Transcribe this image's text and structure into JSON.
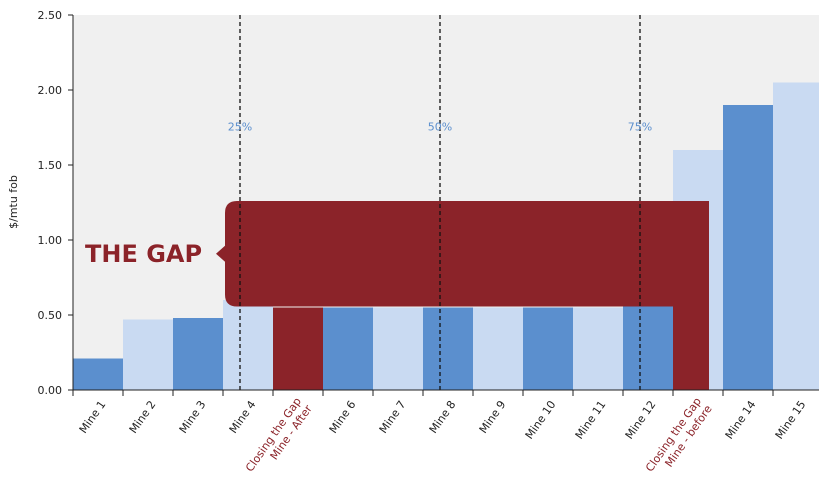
{
  "chart_data": {
    "type": "bar",
    "ylabel": "$/mtu fob",
    "ylim": [
      0,
      2.5
    ],
    "yticks": [
      "0.00",
      "0.50",
      "1.00",
      "1.50",
      "2.00",
      "2.50"
    ],
    "categories": [
      "Mine 1",
      "Mine 2",
      "Mine 3",
      "Mine 4",
      "Closing the Gap Mine - After",
      "Mine 6",
      "Mine 7",
      "Mine 8",
      "Mine 9",
      "Mine 10",
      "Mine 11",
      "Mine 12",
      "Closing the Gap Mine - before",
      "Mine 14",
      "Mine 15"
    ],
    "category_lines": [
      [
        "Mine 1"
      ],
      [
        "Mine 2"
      ],
      [
        "Mine 3"
      ],
      [
        "Mine 4"
      ],
      [
        "Closing the Gap",
        "Mine - After"
      ],
      [
        "Mine 6"
      ],
      [
        "Mine 7"
      ],
      [
        "Mine 8"
      ],
      [
        "Mine 9"
      ],
      [
        "Mine 10"
      ],
      [
        "Mine 11"
      ],
      [
        "Mine 12"
      ],
      [
        "Closing the Gap",
        "Mine - before"
      ],
      [
        "Mine 14"
      ],
      [
        "Mine 15"
      ]
    ],
    "values": [
      0.21,
      0.47,
      0.48,
      0.6,
      0.55,
      0.55,
      0.55,
      0.55,
      0.55,
      0.55,
      0.55,
      1.26,
      1.6,
      1.9,
      2.05
    ],
    "bar_colors": [
      "#5b8fce",
      "#c9daf2",
      "#5b8fce",
      "#c9daf2",
      "#8b2329",
      "#5b8fce",
      "#c9daf2",
      "#5b8fce",
      "#c9daf2",
      "#5b8fce",
      "#c9daf2",
      "#5b8fce",
      "#c9daf2",
      "#5b8fce",
      "#c9daf2"
    ],
    "gap_bar": {
      "category": "Closing the Gap Mine - before",
      "value": 1.26,
      "color": "#8b2329"
    },
    "percentile_lines": [
      {
        "label": "25%",
        "after_category": "Mine 4"
      },
      {
        "label": "50%",
        "after_category": "Mine 8"
      },
      {
        "label": "75%",
        "after_category": "Mine 12"
      }
    ],
    "gap_band": {
      "label": "THE GAP",
      "from": 0.55,
      "to": 1.26,
      "color": "#8b2329"
    },
    "grid": false
  },
  "colors": {
    "dark_bar": "#5b8fce",
    "light_bar": "#c9daf2",
    "accent": "#8b2329",
    "plot_bg": "#f0f0f0"
  }
}
